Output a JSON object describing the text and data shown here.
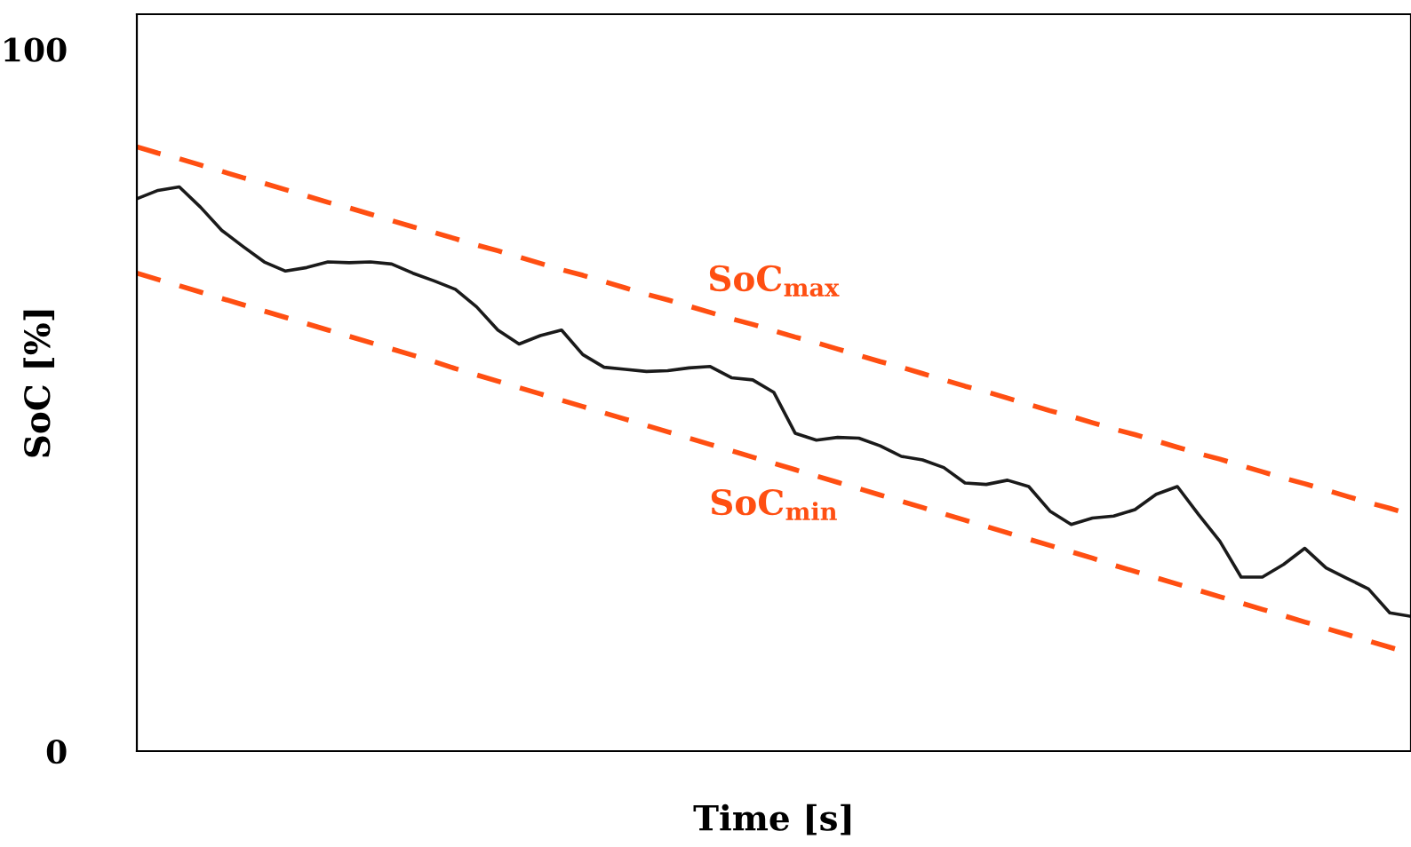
{
  "chart_data": {
    "type": "line",
    "xlabel": "Time [s]",
    "ylabel": "SoC [%]",
    "categories": [
      null,
      null,
      null,
      null,
      null,
      null,
      null,
      null,
      null,
      null,
      null,
      null,
      null,
      null,
      null,
      null,
      null,
      null,
      null,
      null,
      null,
      null,
      null,
      null,
      null,
      null,
      null,
      null,
      null,
      null,
      null,
      null,
      null,
      null,
      null,
      null,
      null,
      null,
      null,
      null,
      null,
      null,
      null,
      null,
      null,
      null,
      null,
      null,
      null,
      null,
      null,
      null,
      null,
      null,
      null,
      null,
      null,
      null,
      null,
      null,
      null
    ],
    "ylim": [
      0,
      105
    ],
    "yticks": [
      0,
      100
    ],
    "tick_labels": "y",
    "grid": false,
    "legend": false,
    "series": [
      {
        "color": "#1a1a1a",
        "line_style": "solid",
        "values": [
          78.7,
          79.9,
          80.4,
          77.5,
          74.2,
          71.9,
          69.7,
          68.4,
          68.9,
          69.7,
          69.6,
          69.7,
          69.4,
          68.1,
          67.0,
          65.8,
          63.3,
          60.0,
          58.0,
          59.2,
          60.0,
          56.5,
          54.7,
          54.4,
          54.1,
          54.2,
          54.6,
          54.8,
          53.2,
          52.9,
          51.1,
          45.3,
          44.3,
          44.7,
          44.6,
          43.5,
          42.0,
          41.5,
          40.4,
          38.2,
          38.0,
          38.6,
          37.7,
          34.2,
          32.3,
          33.2,
          33.5,
          34.4,
          36.6,
          37.7,
          33.7,
          29.9,
          24.8,
          24.8,
          26.6,
          28.9,
          26.1,
          24.6,
          23.1,
          19.7,
          19.2
        ]
      },
      {
        "color": "#ff4f12",
        "line_style": "dashed",
        "values": [
          86.1,
          85.2,
          84.4,
          83.5,
          82.6,
          81.7,
          80.9,
          80.0,
          79.1,
          78.2,
          77.4,
          76.5,
          75.6,
          74.7,
          73.9,
          73.0,
          72.1,
          71.3,
          70.4,
          69.5,
          68.6,
          67.8,
          66.9,
          66.0,
          65.1,
          64.3,
          63.4,
          62.5,
          61.6,
          60.8,
          59.9,
          59.0,
          58.2,
          57.3,
          56.4,
          55.5,
          54.7,
          53.8,
          52.9,
          52.0,
          51.2,
          50.3,
          49.4,
          48.5,
          47.7,
          46.8,
          45.9,
          45.1,
          44.2,
          43.3,
          42.4,
          41.6,
          40.7,
          39.8,
          38.9,
          38.1,
          37.2,
          36.3,
          35.4,
          34.6,
          33.7
        ]
      },
      {
        "color": "#ff4f12",
        "line_style": "dashed",
        "values": [
          68.1,
          67.2,
          66.3,
          65.4,
          64.5,
          63.6,
          62.7,
          61.8,
          60.9,
          60.0,
          59.1,
          58.2,
          57.3,
          56.4,
          55.5,
          54.5,
          53.6,
          52.7,
          51.8,
          50.9,
          50.0,
          49.1,
          48.2,
          47.3,
          46.4,
          45.5,
          44.6,
          43.7,
          42.8,
          41.9,
          41.0,
          40.1,
          39.2,
          38.3,
          37.4,
          36.5,
          35.6,
          34.7,
          33.8,
          32.9,
          32.0,
          31.1,
          30.2,
          29.3,
          28.4,
          27.5,
          26.5,
          25.6,
          24.7,
          23.8,
          22.9,
          22.0,
          21.1,
          20.2,
          19.3,
          18.4,
          17.5,
          16.6,
          15.7,
          14.8,
          13.9
        ]
      }
    ],
    "annotations": [
      "SoC$_{max}$",
      "SoC$_{min}$"
    ]
  }
}
